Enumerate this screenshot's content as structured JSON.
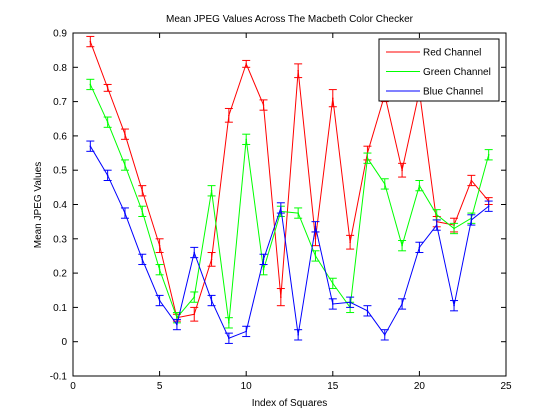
{
  "chart_data": {
    "type": "line",
    "title": "Mean JPEG Values Across The Macbeth Color Checker",
    "xlabel": "Index of Squares",
    "ylabel": "Mean JPEG Values",
    "xlim": [
      0,
      25
    ],
    "ylim": [
      -0.1,
      0.9
    ],
    "xticks": [
      0,
      5,
      10,
      15,
      20,
      25
    ],
    "yticks": [
      -0.1,
      0,
      0.1,
      0.2,
      0.3,
      0.4,
      0.5,
      0.6,
      0.7,
      0.8,
      0.9
    ],
    "grid": false,
    "legend_position": "top-right",
    "x": [
      1,
      2,
      3,
      4,
      5,
      6,
      7,
      8,
      9,
      10,
      11,
      12,
      13,
      14,
      15,
      16,
      17,
      18,
      19,
      20,
      21,
      22,
      23,
      24
    ],
    "series": [
      {
        "name": "Red Channel",
        "color": "#ff0000",
        "values": [
          0.875,
          0.74,
          0.605,
          0.44,
          0.28,
          0.07,
          0.08,
          0.24,
          0.66,
          0.81,
          0.69,
          0.13,
          0.79,
          0.3,
          0.71,
          0.29,
          0.55,
          0.72,
          0.5,
          0.73,
          0.35,
          0.34,
          0.47,
          0.41
        ],
        "errors": [
          0.015,
          0.01,
          0.015,
          0.015,
          0.02,
          0.01,
          0.02,
          0.02,
          0.02,
          0.01,
          0.015,
          0.025,
          0.02,
          0.02,
          0.025,
          0.02,
          0.02,
          0.02,
          0.02,
          0.02,
          0.015,
          0.02,
          0.015,
          0.01
        ]
      },
      {
        "name": "Green Channel",
        "color": "#00ff00",
        "values": [
          0.75,
          0.64,
          0.515,
          0.38,
          0.21,
          0.07,
          0.13,
          0.44,
          0.055,
          0.59,
          0.21,
          0.38,
          0.375,
          0.25,
          0.17,
          0.1,
          0.535,
          0.46,
          0.28,
          0.455,
          0.37,
          0.33,
          0.36,
          0.545
        ]
      },
      {
        "name": "Blue Channel",
        "color": "#0000ff",
        "values": [
          0.57,
          0.485,
          0.375,
          0.24,
          0.12,
          0.05,
          0.26,
          0.12,
          0.01,
          0.03,
          0.24,
          0.39,
          0.02,
          0.335,
          0.11,
          0.115,
          0.09,
          0.02,
          0.11,
          0.275,
          0.34,
          0.105,
          0.355,
          0.395
        ]
      }
    ]
  }
}
